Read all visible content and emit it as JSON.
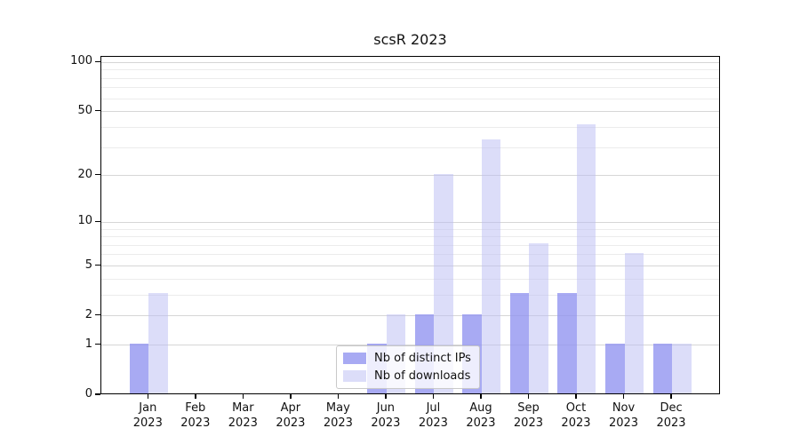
{
  "title": "scsR 2023",
  "year_label": "2023",
  "months": [
    "Jan",
    "Feb",
    "Mar",
    "Apr",
    "May",
    "Jun",
    "Jul",
    "Aug",
    "Sep",
    "Oct",
    "Nov",
    "Dec"
  ],
  "colors": {
    "grid_major": "#d6d6d6",
    "grid_minor": "#ececec",
    "axis": "#000000",
    "text": "#111111",
    "legend_border": "#c9c9c9",
    "legend_bg": "rgba(255,255,255,0.8)"
  },
  "chart_data": {
    "type": "bar",
    "title": "scsR 2023",
    "xlabel": "",
    "ylabel": "",
    "yscale": "log1p",
    "ylim": [
      0,
      108
    ],
    "grid": true,
    "legend_position": "lower center",
    "y_ticks": [
      0,
      1,
      2,
      5,
      10,
      20,
      50,
      100
    ],
    "y_minor_ticks": [
      3,
      4,
      6,
      7,
      8,
      9,
      30,
      40,
      60,
      70,
      80,
      90
    ],
    "categories": [
      "Jan 2023",
      "Feb 2023",
      "Mar 2023",
      "Apr 2023",
      "May 2023",
      "Jun 2023",
      "Jul 2023",
      "Aug 2023",
      "Sep 2023",
      "Oct 2023",
      "Nov 2023",
      "Dec 2023"
    ],
    "series": [
      {
        "name": "Nb of distinct IPs",
        "swatch_color": "#a8aaf3",
        "bar_fill": "rgba(146,149,240,0.8)",
        "values": [
          1,
          0,
          0,
          0,
          0,
          1,
          2,
          2,
          3,
          3,
          1,
          1
        ]
      },
      {
        "name": "Nb of downloads",
        "swatch_color": "#dcddf9",
        "bar_fill": "rgba(185,187,243,0.5)",
        "values": [
          3,
          0,
          0,
          0,
          0,
          2,
          20,
          33,
          7,
          41,
          6,
          1
        ]
      }
    ]
  }
}
